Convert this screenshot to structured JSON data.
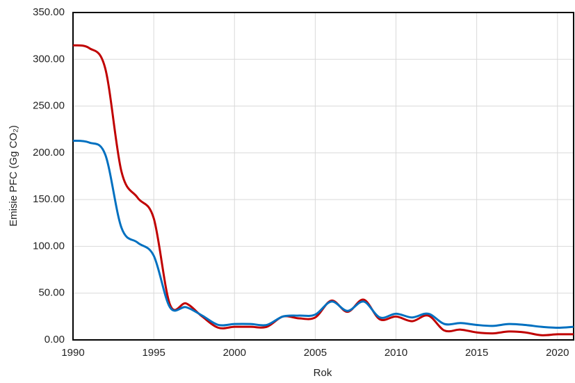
{
  "chart_data": {
    "type": "line",
    "x_label": "Rok",
    "y_label": "Emisie PFC (Gg CO₂)",
    "x": [
      1990,
      1991,
      1992,
      1993,
      1994,
      1995,
      1996,
      1997,
      1998,
      1999,
      2000,
      2001,
      2002,
      2003,
      2004,
      2005,
      2006,
      2007,
      2008,
      2009,
      2010,
      2011,
      2012,
      2013,
      2014,
      2015,
      2016,
      2017,
      2018,
      2019,
      2020,
      2021
    ],
    "series": [
      {
        "color": "#c00000",
        "values": [
          315,
          312,
          290,
          180,
          152,
          130,
          38,
          39,
          25,
          13,
          14,
          14,
          14,
          25,
          23,
          24,
          42,
          30,
          43,
          22,
          25,
          20,
          26,
          10,
          11,
          8,
          7,
          9,
          8,
          5,
          6,
          6
        ]
      },
      {
        "color": "#0070c0",
        "values": [
          213,
          211,
          198,
          120,
          104,
          90,
          35,
          35,
          26,
          16,
          17,
          17,
          16,
          25,
          26,
          27,
          41,
          31,
          41,
          24,
          28,
          24,
          28,
          17,
          18,
          16,
          15,
          17,
          16,
          14,
          13,
          14
        ]
      }
    ],
    "xlim": [
      1990,
      2021
    ],
    "xticks": [
      1990,
      1995,
      2000,
      2005,
      2010,
      2015,
      2020
    ],
    "ylim": [
      0,
      350
    ],
    "yticks": [
      {
        "value": 0,
        "label": "0.00"
      },
      {
        "value": 50,
        "label": "50.00"
      },
      {
        "value": 100,
        "label": "100.00"
      },
      {
        "value": 150,
        "label": "150.00"
      },
      {
        "value": 200,
        "label": "200.00"
      },
      {
        "value": 250,
        "label": "250.00"
      },
      {
        "value": 300,
        "label": "300.00"
      },
      {
        "value": 350,
        "label": "350.00"
      }
    ],
    "grid": true
  }
}
